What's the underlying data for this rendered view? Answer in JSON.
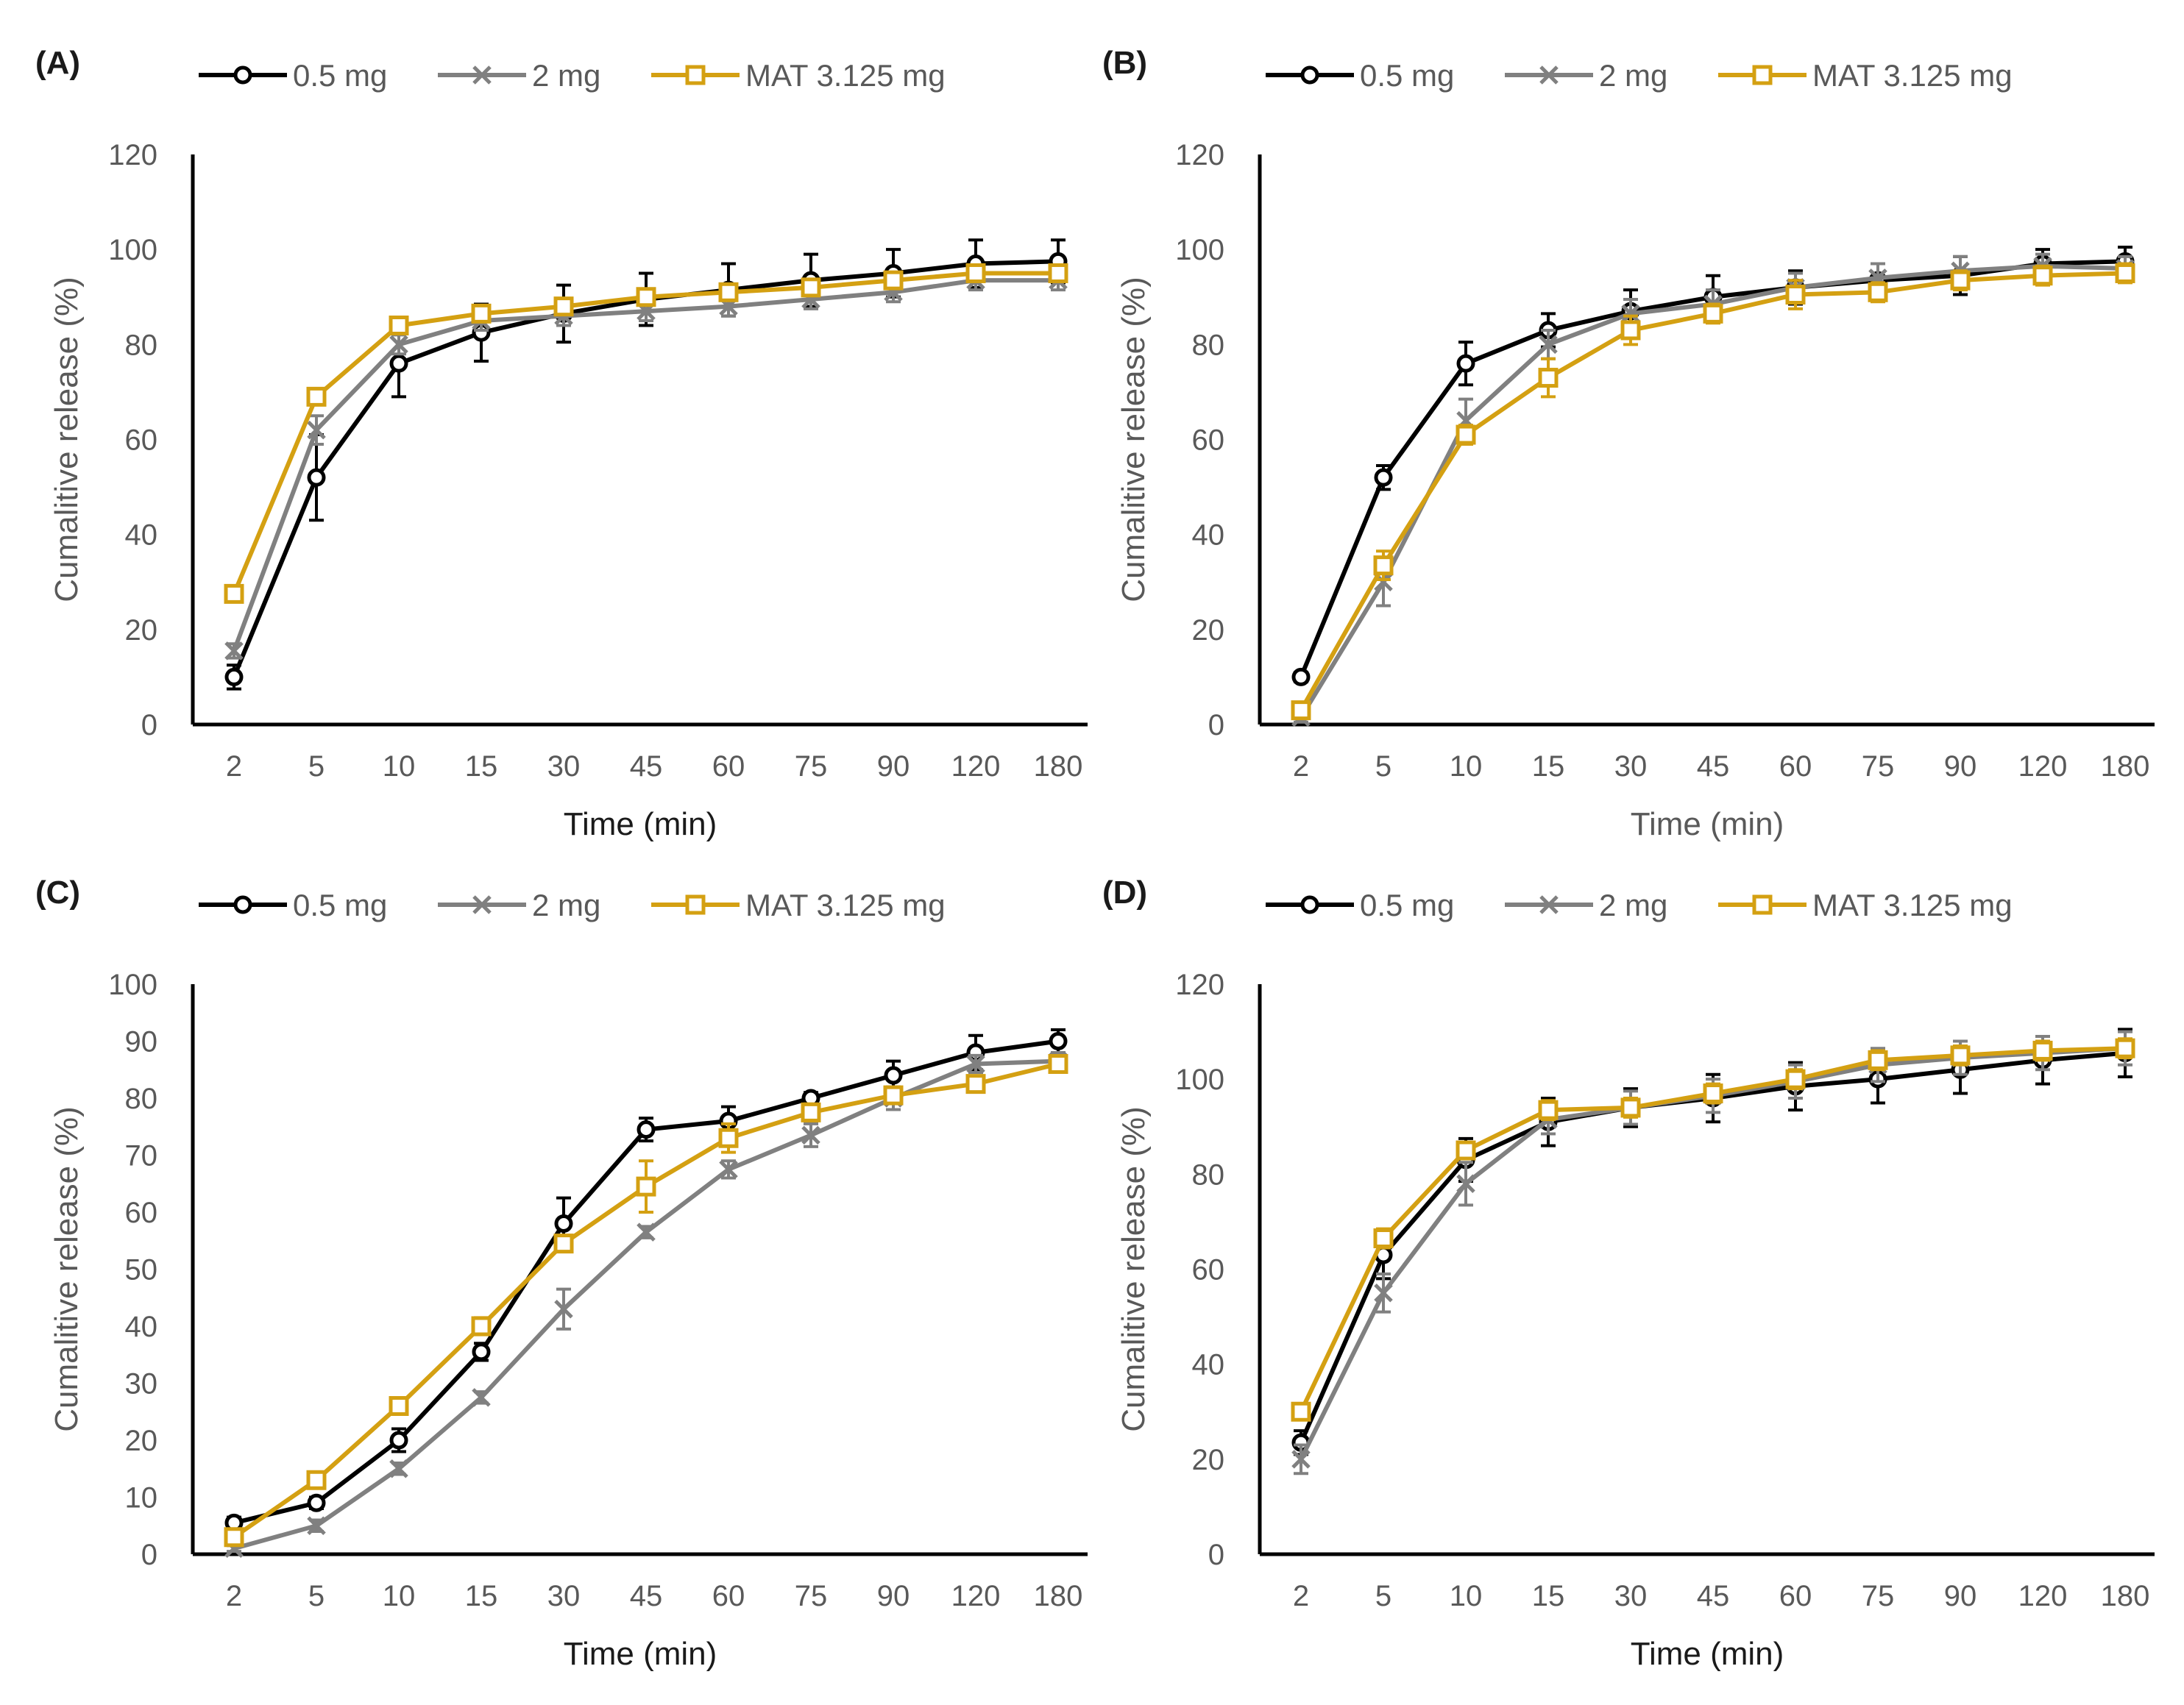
{
  "colors": {
    "series_0.5mg": "#000000",
    "series_2mg": "#808080",
    "series_MAT": "#D4A012",
    "axis": "#000000",
    "tick_text": "#595959",
    "label_dark": "#1a1a1a"
  },
  "legend": {
    "item1": "0.5 mg",
    "item2": "2 mg",
    "item3": "MAT 3.125 mg"
  },
  "chart_data": [
    {
      "panel_label": "(A)",
      "type": "line",
      "title": "",
      "xlabel": "Time (min)",
      "ylabel": "Cumalitive release (%)",
      "categories": [
        "2",
        "5",
        "10",
        "15",
        "30",
        "45",
        "60",
        "75",
        "90",
        "120",
        "180"
      ],
      "ylim": [
        0,
        120
      ],
      "yticks": [
        "0",
        "20",
        "40",
        "60",
        "80",
        "100",
        "120"
      ],
      "grid": false,
      "legend_position": "top",
      "series": [
        {
          "name": "0.5 mg",
          "marker": "circle",
          "values": [
            10,
            52,
            76,
            82.5,
            86.5,
            89.5,
            91.5,
            93.5,
            95,
            97,
            97.5
          ],
          "errors": [
            2.5,
            9,
            7,
            6,
            6,
            5.5,
            5.5,
            5.5,
            5,
            5,
            4.5
          ]
        },
        {
          "name": "2 mg",
          "marker": "x",
          "values": [
            15.5,
            62,
            80,
            85,
            86,
            87,
            88,
            89.5,
            91,
            93.5,
            93.5
          ],
          "errors": [
            1.5,
            3,
            2,
            2,
            2,
            2,
            2,
            2,
            2,
            2,
            2
          ]
        },
        {
          "name": "MAT 3.125 mg",
          "marker": "square",
          "values": [
            27.5,
            69,
            84,
            86.5,
            88,
            90,
            91,
            92,
            93.5,
            95,
            95
          ],
          "errors": [
            1,
            1.5,
            1.5,
            1.5,
            1.5,
            1.5,
            1.5,
            1.5,
            1.5,
            1.5,
            1.5
          ]
        }
      ]
    },
    {
      "panel_label": "(B)",
      "type": "line",
      "title": "",
      "xlabel": "Time (min)",
      "ylabel": "Cumalitive release (%)",
      "categories": [
        "2",
        "5",
        "10",
        "15",
        "30",
        "45",
        "60",
        "75",
        "90",
        "120",
        "180"
      ],
      "ylim": [
        0,
        120
      ],
      "yticks": [
        "0",
        "20",
        "40",
        "60",
        "80",
        "100",
        "120"
      ],
      "grid": false,
      "legend_position": "top",
      "series": [
        {
          "name": "0.5 mg",
          "marker": "circle",
          "values": [
            10,
            52,
            76,
            83,
            87,
            90,
            92,
            93.5,
            94.5,
            97,
            97.5
          ],
          "errors": [
            1,
            2.5,
            4.5,
            3.5,
            4.5,
            4.5,
            3.5,
            3.5,
            4,
            3,
            3
          ]
        },
        {
          "name": "2 mg",
          "marker": "x",
          "values": [
            1.5,
            30,
            64,
            80,
            86.5,
            88.5,
            92,
            94,
            95.5,
            96.5,
            96
          ],
          "errors": [
            1,
            5,
            4.5,
            3,
            3,
            3,
            3,
            3,
            3,
            2.5,
            2.5
          ]
        },
        {
          "name": "MAT 3.125 mg",
          "marker": "square",
          "values": [
            3,
            33.5,
            61,
            73,
            83,
            86.5,
            90.5,
            91,
            93.5,
            94.5,
            95
          ],
          "errors": [
            1,
            3,
            2,
            4,
            3,
            2,
            3,
            2,
            2,
            2,
            2
          ]
        }
      ]
    },
    {
      "panel_label": "(C)",
      "type": "line",
      "title": "",
      "xlabel": "Time (min)",
      "ylabel": "Cumalitive release (%)",
      "categories": [
        "2",
        "5",
        "10",
        "15",
        "30",
        "45",
        "60",
        "75",
        "90",
        "120",
        "180"
      ],
      "ylim": [
        0,
        100
      ],
      "yticks": [
        "0",
        "10",
        "20",
        "30",
        "40",
        "50",
        "60",
        "70",
        "80",
        "90",
        "100"
      ],
      "grid": false,
      "legend_position": "top",
      "series": [
        {
          "name": "0.5 mg",
          "marker": "circle",
          "values": [
            5.5,
            9,
            20,
            35.5,
            58,
            74.5,
            76,
            80,
            84,
            88,
            90
          ],
          "errors": [
            1,
            1,
            2,
            1.5,
            4.5,
            2,
            2.5,
            1,
            2.5,
            3,
            2
          ]
        },
        {
          "name": "2 mg",
          "marker": "x",
          "values": [
            1,
            5,
            15,
            27.5,
            43,
            56.5,
            67.5,
            73.5,
            80,
            86,
            86.5
          ],
          "errors": [
            0.5,
            1,
            1,
            1,
            3.5,
            1,
            1.5,
            2,
            2,
            1.5,
            1.5
          ]
        },
        {
          "name": "MAT 3.125 mg",
          "marker": "square",
          "values": [
            3,
            13,
            26,
            40,
            54.5,
            64.5,
            73,
            77.5,
            80.5,
            82.5,
            86
          ],
          "errors": [
            1,
            1,
            1,
            1.5,
            1,
            4.5,
            2.5,
            1.5,
            1,
            1,
            1
          ]
        }
      ]
    },
    {
      "panel_label": "(D)",
      "type": "line",
      "title": "",
      "xlabel": "Time (min)",
      "ylabel": "Cumalitive release (%)",
      "categories": [
        "2",
        "5",
        "10",
        "15",
        "30",
        "45",
        "60",
        "75",
        "90",
        "120",
        "180"
      ],
      "ylim": [
        0,
        120
      ],
      "yticks": [
        "0",
        "20",
        "40",
        "60",
        "80",
        "100",
        "120"
      ],
      "grid": false,
      "legend_position": "top",
      "series": [
        {
          "name": "0.5 mg",
          "marker": "circle",
          "values": [
            23.5,
            63,
            83,
            91,
            94,
            96,
            98.5,
            100,
            102,
            104,
            105.5
          ],
          "errors": [
            2.5,
            5,
            4.5,
            5,
            4,
            5,
            5,
            5,
            5,
            5,
            5
          ]
        },
        {
          "name": "2 mg",
          "marker": "x",
          "values": [
            20,
            55,
            78,
            91.5,
            94,
            96.5,
            99.5,
            103,
            104.5,
            105.5,
            106.5
          ],
          "errors": [
            3,
            4,
            4.5,
            3,
            3.5,
            3.5,
            3.5,
            3.5,
            3.5,
            3.5,
            3.5
          ]
        },
        {
          "name": "MAT 3.125 mg",
          "marker": "square",
          "values": [
            30,
            66.5,
            85,
            93.5,
            94,
            97,
            100,
            104,
            105,
            106,
            106.5
          ],
          "errors": [
            1.5,
            2,
            1.5,
            2,
            2,
            2,
            2,
            2,
            2,
            2,
            2
          ]
        }
      ]
    }
  ]
}
